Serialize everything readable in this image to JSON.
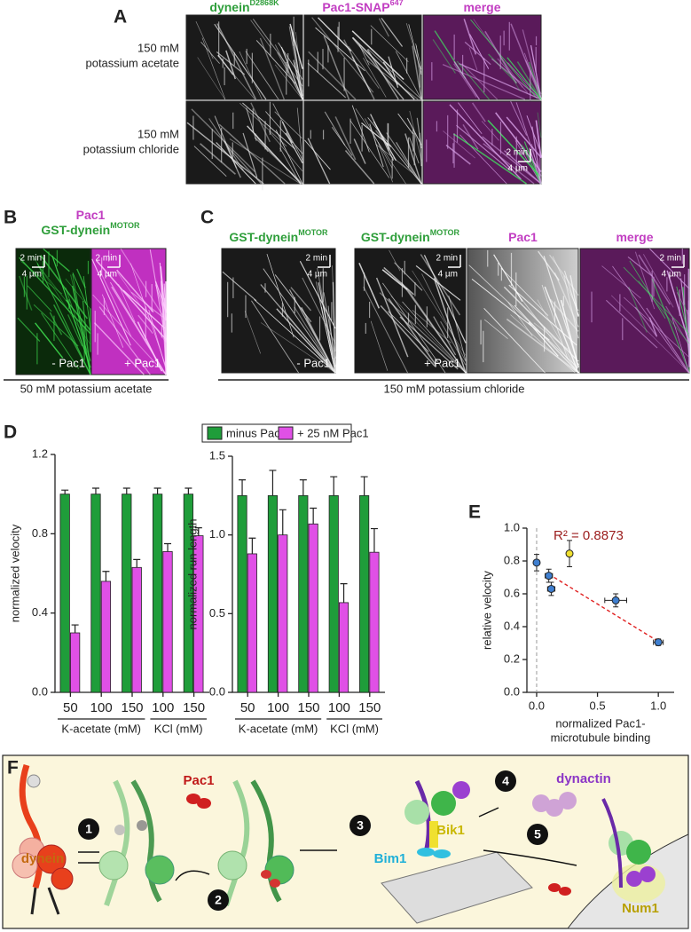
{
  "panel_a": {
    "label": "A",
    "columns": [
      {
        "text": "dynein",
        "sup": "D2868K",
        "color": "#2e9e3a"
      },
      {
        "text": "Pac1-SNAP",
        "sup": "647",
        "color": "#c23ec2"
      },
      {
        "text": "merge",
        "color": "#c23ec2"
      }
    ],
    "rows": [
      [
        "150 mM",
        "potassium acetate"
      ],
      [
        "150 mM",
        "potassium chloride"
      ]
    ],
    "scale": [
      "2 min",
      "4 µm"
    ]
  },
  "panel_b": {
    "label": "B",
    "title": [
      {
        "text": "Pac1",
        "color": "#c23ec2"
      },
      {
        "text": "GST-dynein",
        "sup": "MOTOR",
        "color": "#2e9e3a"
      }
    ],
    "scale": [
      "2 min",
      "4 µm"
    ],
    "panels": [
      "- Pac1",
      "+ Pac1"
    ],
    "condition": "50 mM potassium acetate"
  },
  "panel_c": {
    "label": "C",
    "columns": [
      {
        "text": "GST-dynein",
        "sup": "MOTOR",
        "color": "#2e9e3a"
      },
      {
        "text": "GST-dynein",
        "sup": "MOTOR",
        "color": "#2e9e3a"
      },
      {
        "text": "Pac1",
        "color": "#c23ec2"
      },
      {
        "text": "merge",
        "color": "#c23ec2"
      }
    ],
    "scale": [
      "2 min",
      "4 µm"
    ],
    "panels": [
      "- Pac1",
      "+ Pac1"
    ],
    "condition": "150 mM potassium chloride"
  },
  "chart_data": [
    {
      "type": "bar",
      "label": "D",
      "ylabel": "normalized velocity",
      "groups": [
        {
          "label": "K-acetate (mM)",
          "categories": [
            "50",
            "100",
            "150"
          ]
        },
        {
          "label": "KCl (mM)",
          "categories": [
            "100",
            "150"
          ]
        }
      ],
      "series": [
        {
          "name": "minus Pac1",
          "color": "#1f9d3a",
          "values": [
            1.0,
            1.0,
            1.0,
            1.0,
            1.0
          ],
          "errors": [
            0.02,
            0.03,
            0.03,
            0.03,
            0.03
          ]
        },
        {
          "name": "+ 25 nM Pac1",
          "color": "#e050e6",
          "values": [
            0.3,
            0.56,
            0.63,
            0.71,
            0.79
          ],
          "errors": [
            0.04,
            0.05,
            0.04,
            0.04,
            0.04
          ]
        }
      ],
      "ylim": [
        0,
        1.2
      ],
      "yticks": [
        {
          "value": 0,
          "label": "0.0"
        },
        0.4,
        0.8,
        1.2
      ]
    },
    {
      "type": "bar",
      "ylabel": "normalized run length",
      "groups": [
        {
          "label": "K-acetate (mM)",
          "categories": [
            "50",
            "100",
            "150"
          ]
        },
        {
          "label": "KCl (mM)",
          "categories": [
            "100",
            "150"
          ]
        }
      ],
      "series": [
        {
          "color": "#1f9d3a",
          "values": [
            1.25,
            1.25,
            1.25,
            1.25,
            1.25
          ],
          "errors": [
            0.1,
            0.16,
            0.1,
            0.12,
            0.12
          ]
        },
        {
          "color": "#e050e6",
          "values": [
            0.88,
            1.0,
            1.07,
            0.57,
            0.89
          ],
          "errors": [
            0.1,
            0.16,
            0.1,
            0.12,
            0.15
          ]
        }
      ],
      "ylim": [
        0,
        1.5
      ],
      "yticks": [
        {
          "value": 0,
          "label": "0.0"
        },
        0.5,
        {
          "value": 1,
          "label": "1.0"
        },
        1.5
      ]
    },
    {
      "type": "scatter",
      "label": "E",
      "ylabel": "relative velocity",
      "xlabel": [
        "normalized Pac1-",
        "microtubule binding"
      ],
      "annotation": "R² = 0.8873",
      "x": [
        0,
        0.1,
        0.12,
        0.27,
        0.65,
        1.0
      ],
      "y": [
        0.79,
        0.71,
        0.63,
        0.845,
        0.56,
        0.305
      ],
      "xerr": [
        0.02,
        0.03,
        0.03,
        0.02,
        0.09,
        0.04
      ],
      "yerr": [
        0.05,
        0.04,
        0.04,
        0.08,
        0.04,
        0.02
      ],
      "point_colors": [
        "#3f7fd0",
        "#3f7fd0",
        "#3f7fd0",
        "#f0e030",
        "#3f7fd0",
        "#3f7fd0"
      ],
      "fit": {
        "x": [
          0.1,
          1.0
        ],
        "y": [
          0.72,
          0.31
        ],
        "color": "#e02020"
      },
      "xlim": [
        -0.08,
        1.13
      ],
      "xticks": [
        {
          "value": 0,
          "label": "0.0"
        },
        0.5,
        {
          "value": 1,
          "label": "1.0"
        }
      ],
      "ylim": [
        0,
        1.0
      ],
      "yticks": [
        {
          "value": 0,
          "label": "0.0"
        },
        0.2,
        0.4,
        0.6,
        0.8,
        {
          "value": 1,
          "label": "1.0"
        }
      ]
    }
  ],
  "panel_f": {
    "label": "F",
    "steps": [
      "1",
      "2",
      "3",
      "4",
      "5"
    ],
    "labels": {
      "dynein": "dynein",
      "pac1": "Pac1",
      "dynactin": "dynactin",
      "bik1": "Bik1",
      "bim1": "Bim1",
      "num1": "Num1"
    }
  }
}
